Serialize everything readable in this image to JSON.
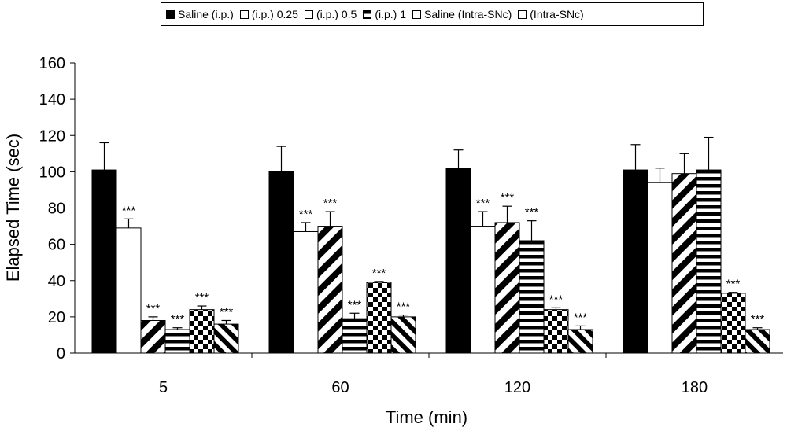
{
  "chart_data": {
    "type": "bar",
    "title": "",
    "xlabel": "Time (min)",
    "ylabel": "Elapsed Time (sec)",
    "ylim": [
      0,
      160
    ],
    "yticks": [
      0,
      20,
      40,
      60,
      80,
      100,
      120,
      140,
      160
    ],
    "grid": false,
    "legend_position": "top",
    "categories": [
      "5",
      "60",
      "120",
      "180"
    ],
    "series": [
      {
        "name": "Saline (i.p.)",
        "pattern": "solid",
        "values": [
          101,
          100,
          102,
          101
        ],
        "errors": [
          15,
          14,
          10,
          14
        ],
        "sig": [
          "",
          "",
          "",
          ""
        ]
      },
      {
        "name": "(i.p.) 0.25",
        "pattern": "white",
        "values": [
          69,
          67,
          70,
          94
        ],
        "errors": [
          5,
          5,
          8,
          8
        ],
        "sig": [
          "***",
          "***",
          "***",
          ""
        ]
      },
      {
        "name": "(i.p.) 0.5",
        "pattern": "diagonal",
        "values": [
          18,
          70,
          72,
          99
        ],
        "errors": [
          2,
          8,
          9,
          11
        ],
        "sig": [
          "***",
          "***",
          "***",
          ""
        ]
      },
      {
        "name": "(i.p.) 1",
        "pattern": "horizontal",
        "values": [
          13,
          19,
          62,
          101
        ],
        "errors": [
          1,
          3,
          11,
          18
        ],
        "sig": [
          "***",
          "***",
          "***",
          ""
        ]
      },
      {
        "name": "Saline (Intra-SNc)",
        "pattern": "checker",
        "values": [
          24,
          39,
          24,
          33
        ],
        "errors": [
          2,
          0.5,
          1,
          0.5
        ],
        "sig": [
          "***",
          "***",
          "***",
          "***"
        ]
      },
      {
        "name": "(Intra-SNc)",
        "pattern": "antidiagonal",
        "values": [
          16,
          20,
          13,
          13
        ],
        "errors": [
          2,
          1,
          2,
          1
        ],
        "sig": [
          "***",
          "***",
          "***",
          "***"
        ]
      }
    ],
    "colors": {
      "fill": "#000000",
      "background": "#ffffff"
    }
  }
}
